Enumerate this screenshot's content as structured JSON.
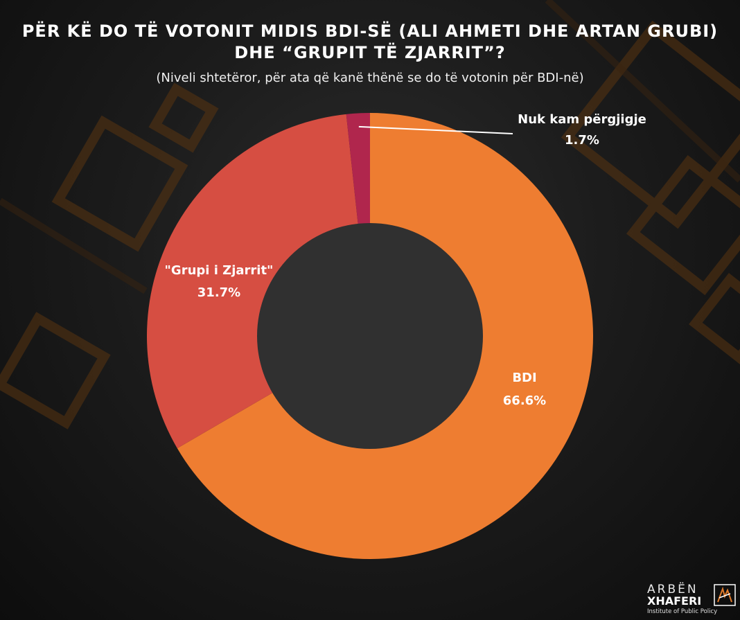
{
  "title": "PËR KË DO TË VOTONIT MIDIS BDI-SË (ALI AHMETI DHE ARTAN GRUBI) DHE “GRUPIT TË ZJARRIT”?",
  "subtitle": "(Niveli shtetëror, për ata që kanë thënë se do të votonin për BDI-në)",
  "chart_data": {
    "type": "pie",
    "donut": true,
    "start_angle": "top, clockwise",
    "slices": [
      {
        "label": "BDI",
        "value": 66.6,
        "value_label": "66.6%",
        "color": "#ee7d31"
      },
      {
        "label": "\"Grupi i Zjarrit\"",
        "value": 31.7,
        "value_label": "31.7%",
        "color": "#d64e42"
      },
      {
        "label": "Nuk kam përgjigje",
        "value": 1.7,
        "value_label": "1.7%",
        "color": "#b0264d"
      }
    ],
    "center_color": "#303030",
    "accent_color": "#8a4a12"
  },
  "logo": {
    "line1": "ARBËN",
    "line2": "XHAFERI",
    "line3": "Institute of Public Policy"
  }
}
